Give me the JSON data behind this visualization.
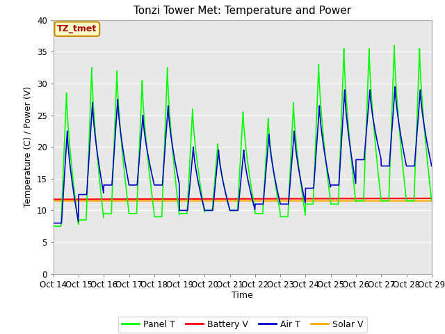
{
  "title": "Tonzi Tower Met: Temperature and Power",
  "xlabel": "Time",
  "ylabel": "Temperature (C) / Power (V)",
  "ylim": [
    0,
    40
  ],
  "yticks": [
    0,
    5,
    10,
    15,
    20,
    25,
    30,
    35,
    40
  ],
  "xtick_labels": [
    "Oct 14",
    "Oct 15",
    "Oct 16",
    "Oct 17",
    "Oct 18",
    "Oct 19",
    "Oct 20",
    "Oct 21",
    "Oct 22",
    "Oct 23",
    "Oct 24",
    "Oct 25",
    "Oct 26",
    "Oct 27",
    "Oct 28",
    "Oct 29"
  ],
  "annotation_text": "TZ_tmet",
  "annotation_bg": "#ffffcc",
  "annotation_border": "#cc8800",
  "annotation_text_color": "#aa0000",
  "colors": {
    "panel_t": "#00ff00",
    "battery_v": "#ff0000",
    "air_t": "#0000cc",
    "solar_v": "#ffaa00"
  },
  "legend_labels": [
    "Panel T",
    "Battery V",
    "Air T",
    "Solar V"
  ],
  "background_color": "#e8e8e8",
  "grid_color": "#ffffff",
  "title_fontsize": 11,
  "axis_fontsize": 9,
  "tick_fontsize": 8.5
}
